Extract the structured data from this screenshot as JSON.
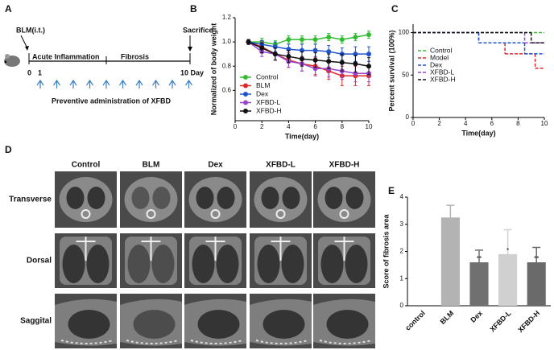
{
  "panel_a": {
    "label": "A",
    "start": "BLM(i.t.)",
    "end": "Sacrifice",
    "phase_1": "Acute Inflammation",
    "phase_2": "Fibrosis",
    "day_0": "0",
    "day_1": "1",
    "day_10": "10 Day",
    "caption": "Preventive administration of XFBD"
  },
  "panel_d": {
    "label": "D",
    "columns": [
      "Control",
      "BLM",
      "Dex",
      "XFBD-L",
      "XFBD-H"
    ],
    "rows": [
      "Transverse",
      "Dorsal",
      "Saggital"
    ]
  },
  "chart_data": [
    {
      "type": "line",
      "panel": "B",
      "xlabel": "Time(day)",
      "ylabel": "Normalized of body weight",
      "x": [
        1,
        2,
        3,
        4,
        5,
        6,
        7,
        8,
        9,
        10
      ],
      "xlim": [
        0,
        10
      ],
      "xticks": [
        0,
        2,
        4,
        6,
        8,
        10
      ],
      "ylim": [
        0.35,
        1.2
      ],
      "yticks": [
        0.6,
        0.8,
        {
          "value": 1,
          "label": "1.0"
        },
        1.2
      ],
      "series": [
        {
          "name": "Control",
          "color": "#33bb33",
          "values": [
            1.0,
            1.0,
            0.98,
            1.02,
            1.02,
            1.02,
            1.04,
            1.02,
            1.04,
            1.06
          ],
          "errors": [
            0.02,
            0.03,
            0.03,
            0.03,
            0.03,
            0.03,
            0.03,
            0.03,
            0.03,
            0.03
          ]
        },
        {
          "name": "BLM",
          "color": "#e02828",
          "values": [
            1.0,
            0.96,
            0.9,
            0.85,
            0.82,
            0.8,
            0.76,
            0.72,
            0.72,
            0.72
          ],
          "errors": [
            0.02,
            0.04,
            0.05,
            0.06,
            0.06,
            0.07,
            0.07,
            0.08,
            0.08,
            0.08
          ]
        },
        {
          "name": "Dex",
          "color": "#2255cc",
          "values": [
            1.0,
            0.98,
            0.96,
            0.94,
            0.93,
            0.93,
            0.92,
            0.9,
            0.9,
            0.9
          ],
          "errors": [
            0.02,
            0.03,
            0.04,
            0.04,
            0.05,
            0.05,
            0.05,
            0.05,
            0.06,
            0.06
          ]
        },
        {
          "name": "XFBD-L",
          "color": "#9944cc",
          "values": [
            1.0,
            0.92,
            0.9,
            0.84,
            0.82,
            0.78,
            0.78,
            0.76,
            0.74,
            0.74
          ],
          "errors": [
            0.02,
            0.04,
            0.05,
            0.05,
            0.06,
            0.06,
            0.07,
            0.07,
            0.07,
            0.07
          ]
        },
        {
          "name": "XFBD-H",
          "color": "#111111",
          "values": [
            1.0,
            0.95,
            0.9,
            0.88,
            0.86,
            0.85,
            0.84,
            0.83,
            0.82,
            0.8
          ],
          "errors": [
            0.02,
            0.04,
            0.05,
            0.05,
            0.06,
            0.06,
            0.06,
            0.07,
            0.07,
            0.07
          ]
        }
      ]
    },
    {
      "type": "step",
      "panel": "C",
      "xlabel": "Time(day)",
      "ylabel": "Percent survival (100%)",
      "xlim": [
        0,
        10
      ],
      "xticks": [
        0,
        2,
        4,
        6,
        8,
        10
      ],
      "ylim": [
        0,
        110
      ],
      "yticks": [
        0,
        50,
        100
      ],
      "series": [
        {
          "name": "Control",
          "color": "#33bb33",
          "x": [
            0,
            10
          ],
          "values": [
            100,
            100
          ]
        },
        {
          "name": "Model",
          "color": "#e02828",
          "x": [
            0,
            5,
            7,
            9.3,
            10
          ],
          "values": [
            100,
            88,
            75,
            58,
            58
          ]
        },
        {
          "name": "Dex",
          "color": "#2255cc",
          "x": [
            0,
            5,
            8.5,
            10
          ],
          "values": [
            100,
            88,
            75,
            75
          ]
        },
        {
          "name": "XFBD-L",
          "color": "#9944cc",
          "x": [
            0,
            8.5,
            10
          ],
          "values": [
            100,
            88,
            88
          ]
        },
        {
          "name": "XFBD-H",
          "color": "#111111",
          "x": [
            0,
            9,
            10
          ],
          "values": [
            100,
            88,
            88
          ]
        }
      ]
    },
    {
      "type": "bar",
      "panel": "E",
      "ylabel": "Score of fibrosis area",
      "categories": [
        "control",
        "BLM",
        "Dex",
        "XFBD-L",
        "XFBD-H"
      ],
      "values": [
        0,
        3.25,
        1.6,
        1.9,
        1.6
      ],
      "errors": [
        0,
        0.45,
        0.45,
        0.9,
        0.55
      ],
      "colors": [
        "#cccccc",
        "#b3b3b3",
        "#707070",
        "#d0d0d0",
        "#6a6a6a"
      ],
      "significance": [
        null,
        null,
        "**",
        "*",
        "**"
      ],
      "ylim": [
        0,
        4
      ],
      "yticks": [
        0,
        1,
        2,
        3,
        4
      ]
    }
  ]
}
